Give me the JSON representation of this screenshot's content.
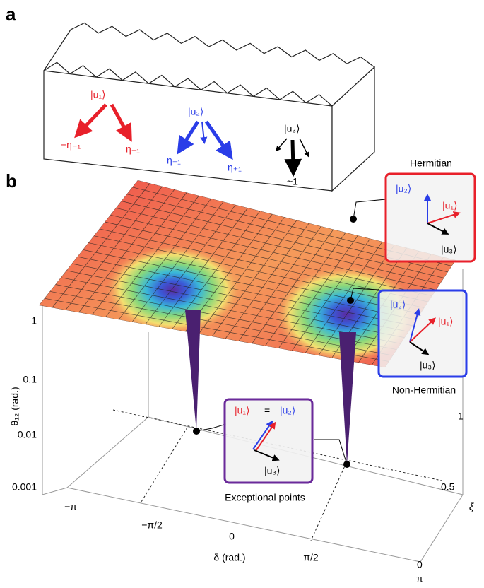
{
  "panel_a": {
    "label": "a",
    "u1": {
      "ket": "|u₁⟩",
      "left": "−η₋₁",
      "right": "η₊₁"
    },
    "u2": {
      "ket": "|u₂⟩",
      "left": "η₋₁",
      "right": "η₊₁"
    },
    "u3": {
      "ket": "|u₃⟩",
      "bottom": "~1"
    }
  },
  "panel_b": {
    "label": "b",
    "z_axis": {
      "label": "θ₁₂ (rad.)",
      "ticks": [
        "1",
        "0.1",
        "0.01",
        "0.001"
      ]
    },
    "x_axis": {
      "label": "δ (rad.)",
      "ticks": [
        "−π",
        "−π/2",
        "0",
        "π/2",
        "π"
      ]
    },
    "y_axis": {
      "label": "ξ",
      "ticks": [
        "0",
        "0.5",
        "1"
      ]
    },
    "hermitian": {
      "title": "Hermitian",
      "u1": "|u₁⟩",
      "u2": "|u₂⟩",
      "u3": "|u₃⟩"
    },
    "non_hermitian": {
      "title": "Non-Hermitian",
      "u1": "|u₁⟩",
      "u2": "|u₂⟩",
      "u3": "|u₃⟩"
    },
    "exceptional": {
      "title": "Exceptional points",
      "u1": "|u₁⟩",
      "equals": "=",
      "u2": "|u₂⟩",
      "u3": "|u₃⟩"
    }
  }
}
